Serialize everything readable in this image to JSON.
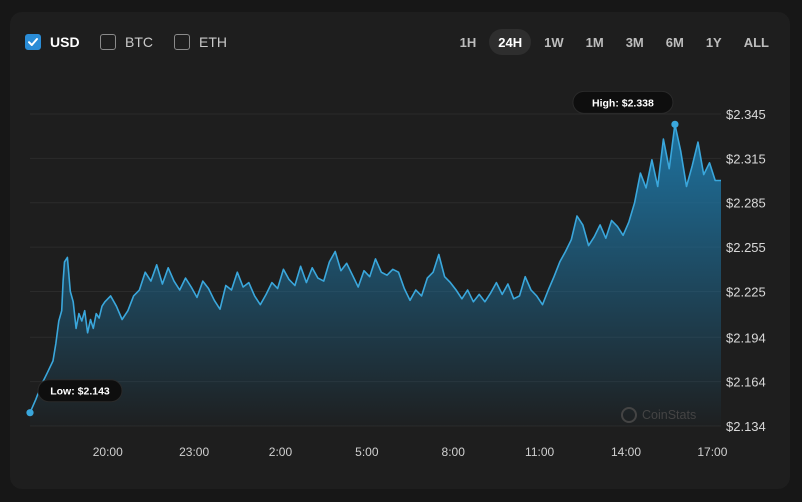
{
  "currencies": [
    {
      "label": "USD",
      "checked": true
    },
    {
      "label": "BTC",
      "checked": false
    },
    {
      "label": "ETH",
      "checked": false
    }
  ],
  "ranges": [
    {
      "label": "1H",
      "active": false
    },
    {
      "label": "24H",
      "active": true
    },
    {
      "label": "1W",
      "active": false
    },
    {
      "label": "1M",
      "active": false
    },
    {
      "label": "3M",
      "active": false
    },
    {
      "label": "6M",
      "active": false
    },
    {
      "label": "1Y",
      "active": false
    },
    {
      "label": "ALL",
      "active": false
    }
  ],
  "colors": {
    "line": "#3aa7dc",
    "area_top": "#1e78a8",
    "grid": "#2b2b2b",
    "accent": "#2a8cd6"
  },
  "watermark": "CoinStats",
  "chart_data": {
    "type": "area",
    "title": "",
    "xlabel": "",
    "ylabel": "",
    "ylim": [
      2.134,
      2.345
    ],
    "y_ticks": [
      "$2.345",
      "$2.315",
      "$2.285",
      "$2.255",
      "$2.225",
      "$2.194",
      "$2.164",
      "$2.134"
    ],
    "y_tick_values": [
      2.345,
      2.315,
      2.285,
      2.255,
      2.225,
      2.194,
      2.164,
      2.134
    ],
    "x_ticks": [
      "20:00",
      "23:00",
      "2:00",
      "5:00",
      "8:00",
      "11:00",
      "14:00",
      "17:00"
    ],
    "x_tick_hours": [
      2.7,
      5.7,
      8.7,
      11.7,
      14.7,
      17.7,
      20.7,
      23.7
    ],
    "grid": true,
    "series": [
      {
        "x": [
          0.0,
          0.2,
          0.4,
          0.6,
          0.8,
          0.9,
          1.0,
          1.1,
          1.15,
          1.2,
          1.3,
          1.4,
          1.5,
          1.6,
          1.7,
          1.8,
          1.9,
          2.0,
          2.1,
          2.2,
          2.3,
          2.4,
          2.5,
          2.6,
          2.8,
          3.0,
          3.2,
          3.4,
          3.6,
          3.8,
          4.0,
          4.2,
          4.4,
          4.6,
          4.8,
          5.0,
          5.2,
          5.4,
          5.6,
          5.8,
          6.0,
          6.2,
          6.4,
          6.6,
          6.8,
          7.0,
          7.2,
          7.4,
          7.6,
          7.8,
          8.0,
          8.2,
          8.4,
          8.6,
          8.8,
          9.0,
          9.2,
          9.4,
          9.6,
          9.8,
          10.0,
          10.2,
          10.4,
          10.6,
          10.8,
          11.0,
          11.2,
          11.4,
          11.6,
          11.8,
          12.0,
          12.2,
          12.4,
          12.6,
          12.8,
          13.0,
          13.2,
          13.4,
          13.6,
          13.8,
          14.0,
          14.2,
          14.4,
          14.6,
          14.8,
          15.0,
          15.2,
          15.4,
          15.6,
          15.8,
          16.0,
          16.2,
          16.4,
          16.6,
          16.8,
          17.0,
          17.2,
          17.4,
          17.6,
          17.8,
          18.0,
          18.2,
          18.4,
          18.6,
          18.8,
          19.0,
          19.2,
          19.4,
          19.6,
          19.8,
          20.0,
          20.2,
          20.4,
          20.6,
          20.8,
          21.0,
          21.2,
          21.4,
          21.6,
          21.8,
          22.0,
          22.2,
          22.4,
          22.6,
          22.8,
          23.0,
          23.2,
          23.4,
          23.6,
          23.8,
          24.0
        ],
        "y": [
          2.143,
          2.152,
          2.162,
          2.17,
          2.178,
          2.19,
          2.205,
          2.212,
          2.232,
          2.245,
          2.248,
          2.225,
          2.218,
          2.2,
          2.21,
          2.205,
          2.212,
          2.197,
          2.206,
          2.2,
          2.21,
          2.207,
          2.215,
          2.218,
          2.222,
          2.215,
          2.206,
          2.212,
          2.222,
          2.226,
          2.238,
          2.232,
          2.243,
          2.23,
          2.241,
          2.232,
          2.226,
          2.234,
          2.228,
          2.221,
          2.232,
          2.227,
          2.219,
          2.213,
          2.229,
          2.226,
          2.238,
          2.228,
          2.231,
          2.222,
          2.216,
          2.223,
          2.231,
          2.227,
          2.24,
          2.233,
          2.229,
          2.242,
          2.231,
          2.241,
          2.234,
          2.232,
          2.245,
          2.252,
          2.239,
          2.244,
          2.236,
          2.228,
          2.239,
          2.235,
          2.247,
          2.238,
          2.236,
          2.24,
          2.238,
          2.227,
          2.219,
          2.226,
          2.222,
          2.234,
          2.238,
          2.25,
          2.235,
          2.231,
          2.226,
          2.22,
          2.226,
          2.218,
          2.223,
          2.218,
          2.224,
          2.231,
          2.223,
          2.23,
          2.22,
          2.222,
          2.235,
          2.226,
          2.222,
          2.216,
          2.226,
          2.235,
          2.245,
          2.252,
          2.26,
          2.276,
          2.27,
          2.256,
          2.262,
          2.27,
          2.261,
          2.273,
          2.269,
          2.263,
          2.272,
          2.285,
          2.305,
          2.295,
          2.314,
          2.296,
          2.328,
          2.308,
          2.338,
          2.32,
          2.296,
          2.31,
          2.326,
          2.304,
          2.312,
          2.3,
          2.3
        ],
        "high": {
          "label": "High: $2.338",
          "x": 22.4,
          "y": 2.338
        },
        "low": {
          "label": "Low: $2.143",
          "x": 0.0,
          "y": 2.143
        }
      }
    ]
  }
}
